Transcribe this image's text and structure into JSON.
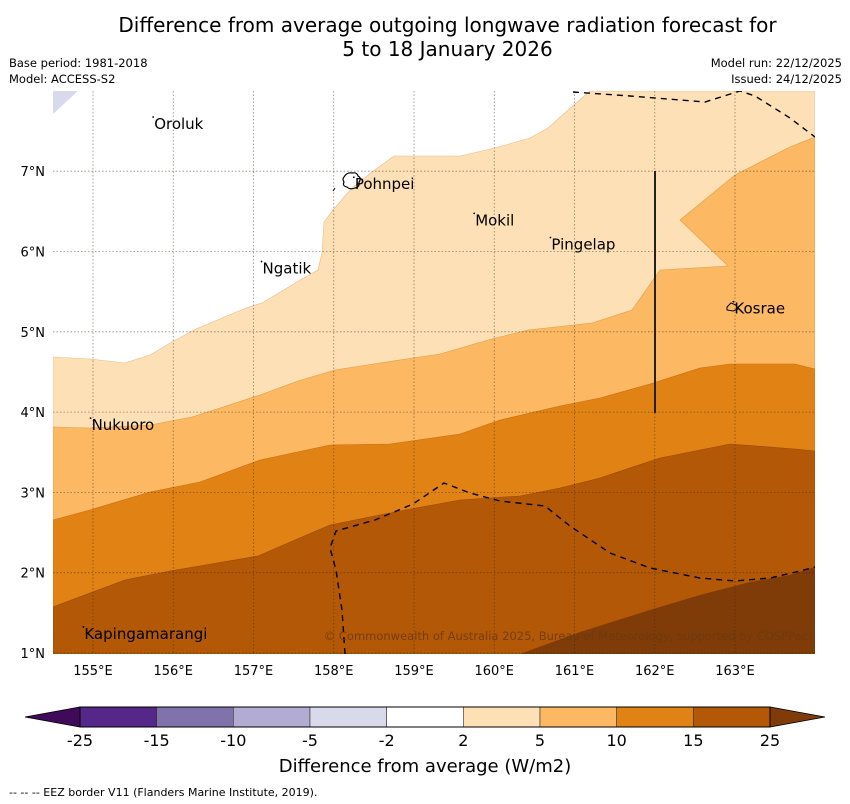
{
  "header": {
    "title_line1": "Difference from average outgoing longwave radiation forecast for",
    "title_line2": "5 to 18 January 2026",
    "base_period": "Base period: 1981-2018",
    "model": "Model: ACCESS-S2",
    "model_run": "Model run: 22/12/2025",
    "issued": "Issued: 24/12/2025"
  },
  "map": {
    "lon_range": [
      154.5,
      164.0
    ],
    "lat_range": [
      1.0,
      8.0
    ],
    "lon_ticks": [
      "155°E",
      "156°E",
      "157°E",
      "158°E",
      "159°E",
      "160°E",
      "161°E",
      "162°E",
      "163°E"
    ],
    "lon_tick_values": [
      155,
      156,
      157,
      158,
      159,
      160,
      161,
      162,
      163
    ],
    "lat_ticks": [
      "1°N",
      "2°N",
      "3°N",
      "4°N",
      "5°N",
      "6°N",
      "7°N"
    ],
    "lat_tick_values": [
      1,
      2,
      3,
      4,
      5,
      6,
      7
    ],
    "places": [
      {
        "name": "Oroluk",
        "lon": 155.75,
        "lat": 7.6
      },
      {
        "name": "Pohnpei",
        "lon": 158.25,
        "lat": 6.85
      },
      {
        "name": "Mokil",
        "lon": 159.75,
        "lat": 6.4
      },
      {
        "name": "Pingelap",
        "lon": 160.7,
        "lat": 6.1
      },
      {
        "name": "Ngatik",
        "lon": 157.1,
        "lat": 5.8
      },
      {
        "name": "Kosrae",
        "lon": 162.98,
        "lat": 5.3
      },
      {
        "name": "Nukuoro",
        "lon": 154.97,
        "lat": 3.85
      },
      {
        "name": "Kapingamarangi",
        "lon": 154.88,
        "lat": 1.25
      }
    ],
    "copyright": "© Commonwealth of Australia 2025, Bureau of Meteorology, supported by COSPPac"
  },
  "colorbar": {
    "title": "Difference from average (W/m2)",
    "boundaries": [
      "-25",
      "-15",
      "-10",
      "-5",
      "-2",
      "2",
      "5",
      "10",
      "15",
      "25"
    ],
    "under_color": "#3f0a5a",
    "over_color": "#7f3b08",
    "colors": [
      "#542788",
      "#8073ac",
      "#b2abd2",
      "#d8daeb",
      "#ffffff",
      "#fee0b6",
      "#fdb863",
      "#e08214",
      "#b35806"
    ]
  },
  "footnote": "-- -- -- EEZ border V11 (Flanders Marine Institute, 2019)."
}
